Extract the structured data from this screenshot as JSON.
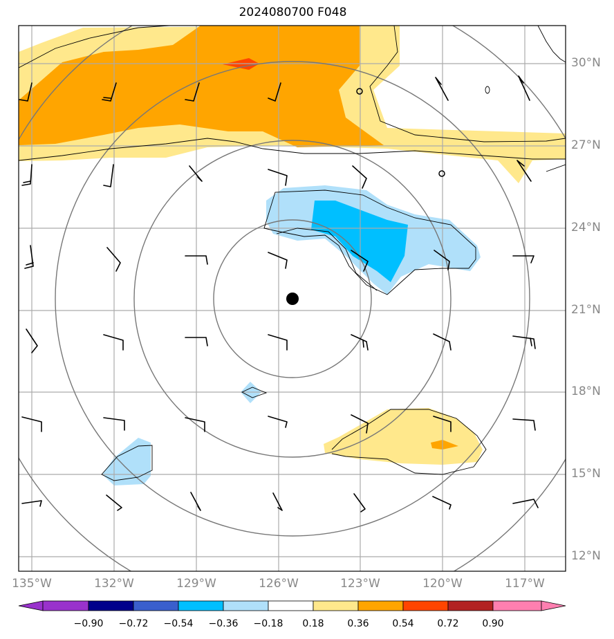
{
  "title": "2024080700 F048",
  "map": {
    "lon_labels": [
      "135°W",
      "132°W",
      "129°W",
      "126°W",
      "123°W",
      "120°W",
      "117°W"
    ],
    "lat_labels": [
      "30°N",
      "27°N",
      "24°N",
      "21°N",
      "18°N",
      "15°N",
      "12°N"
    ],
    "center_marker": "storm-center"
  },
  "colorbar": {
    "tick_labels": [
      "−0.90",
      "−0.72",
      "−0.54",
      "−0.36",
      "−0.18",
      "0.18",
      "0.36",
      "0.54",
      "0.72",
      "0.90"
    ],
    "colors": [
      "#9932cc",
      "#00008b",
      "#3a5fcd",
      "#00bfff",
      "#b0e0fa",
      "#ffffff",
      "#ffe88c",
      "#ffa500",
      "#ff4500",
      "#b22222",
      "#ff7fb0"
    ]
  },
  "fill_colors": {
    "light_yellow": "#ffe88c",
    "orange": "#ffa500",
    "red_orange": "#ff4500",
    "light_blue": "#b0e0fa",
    "deep_sky_blue": "#00bfff"
  }
}
